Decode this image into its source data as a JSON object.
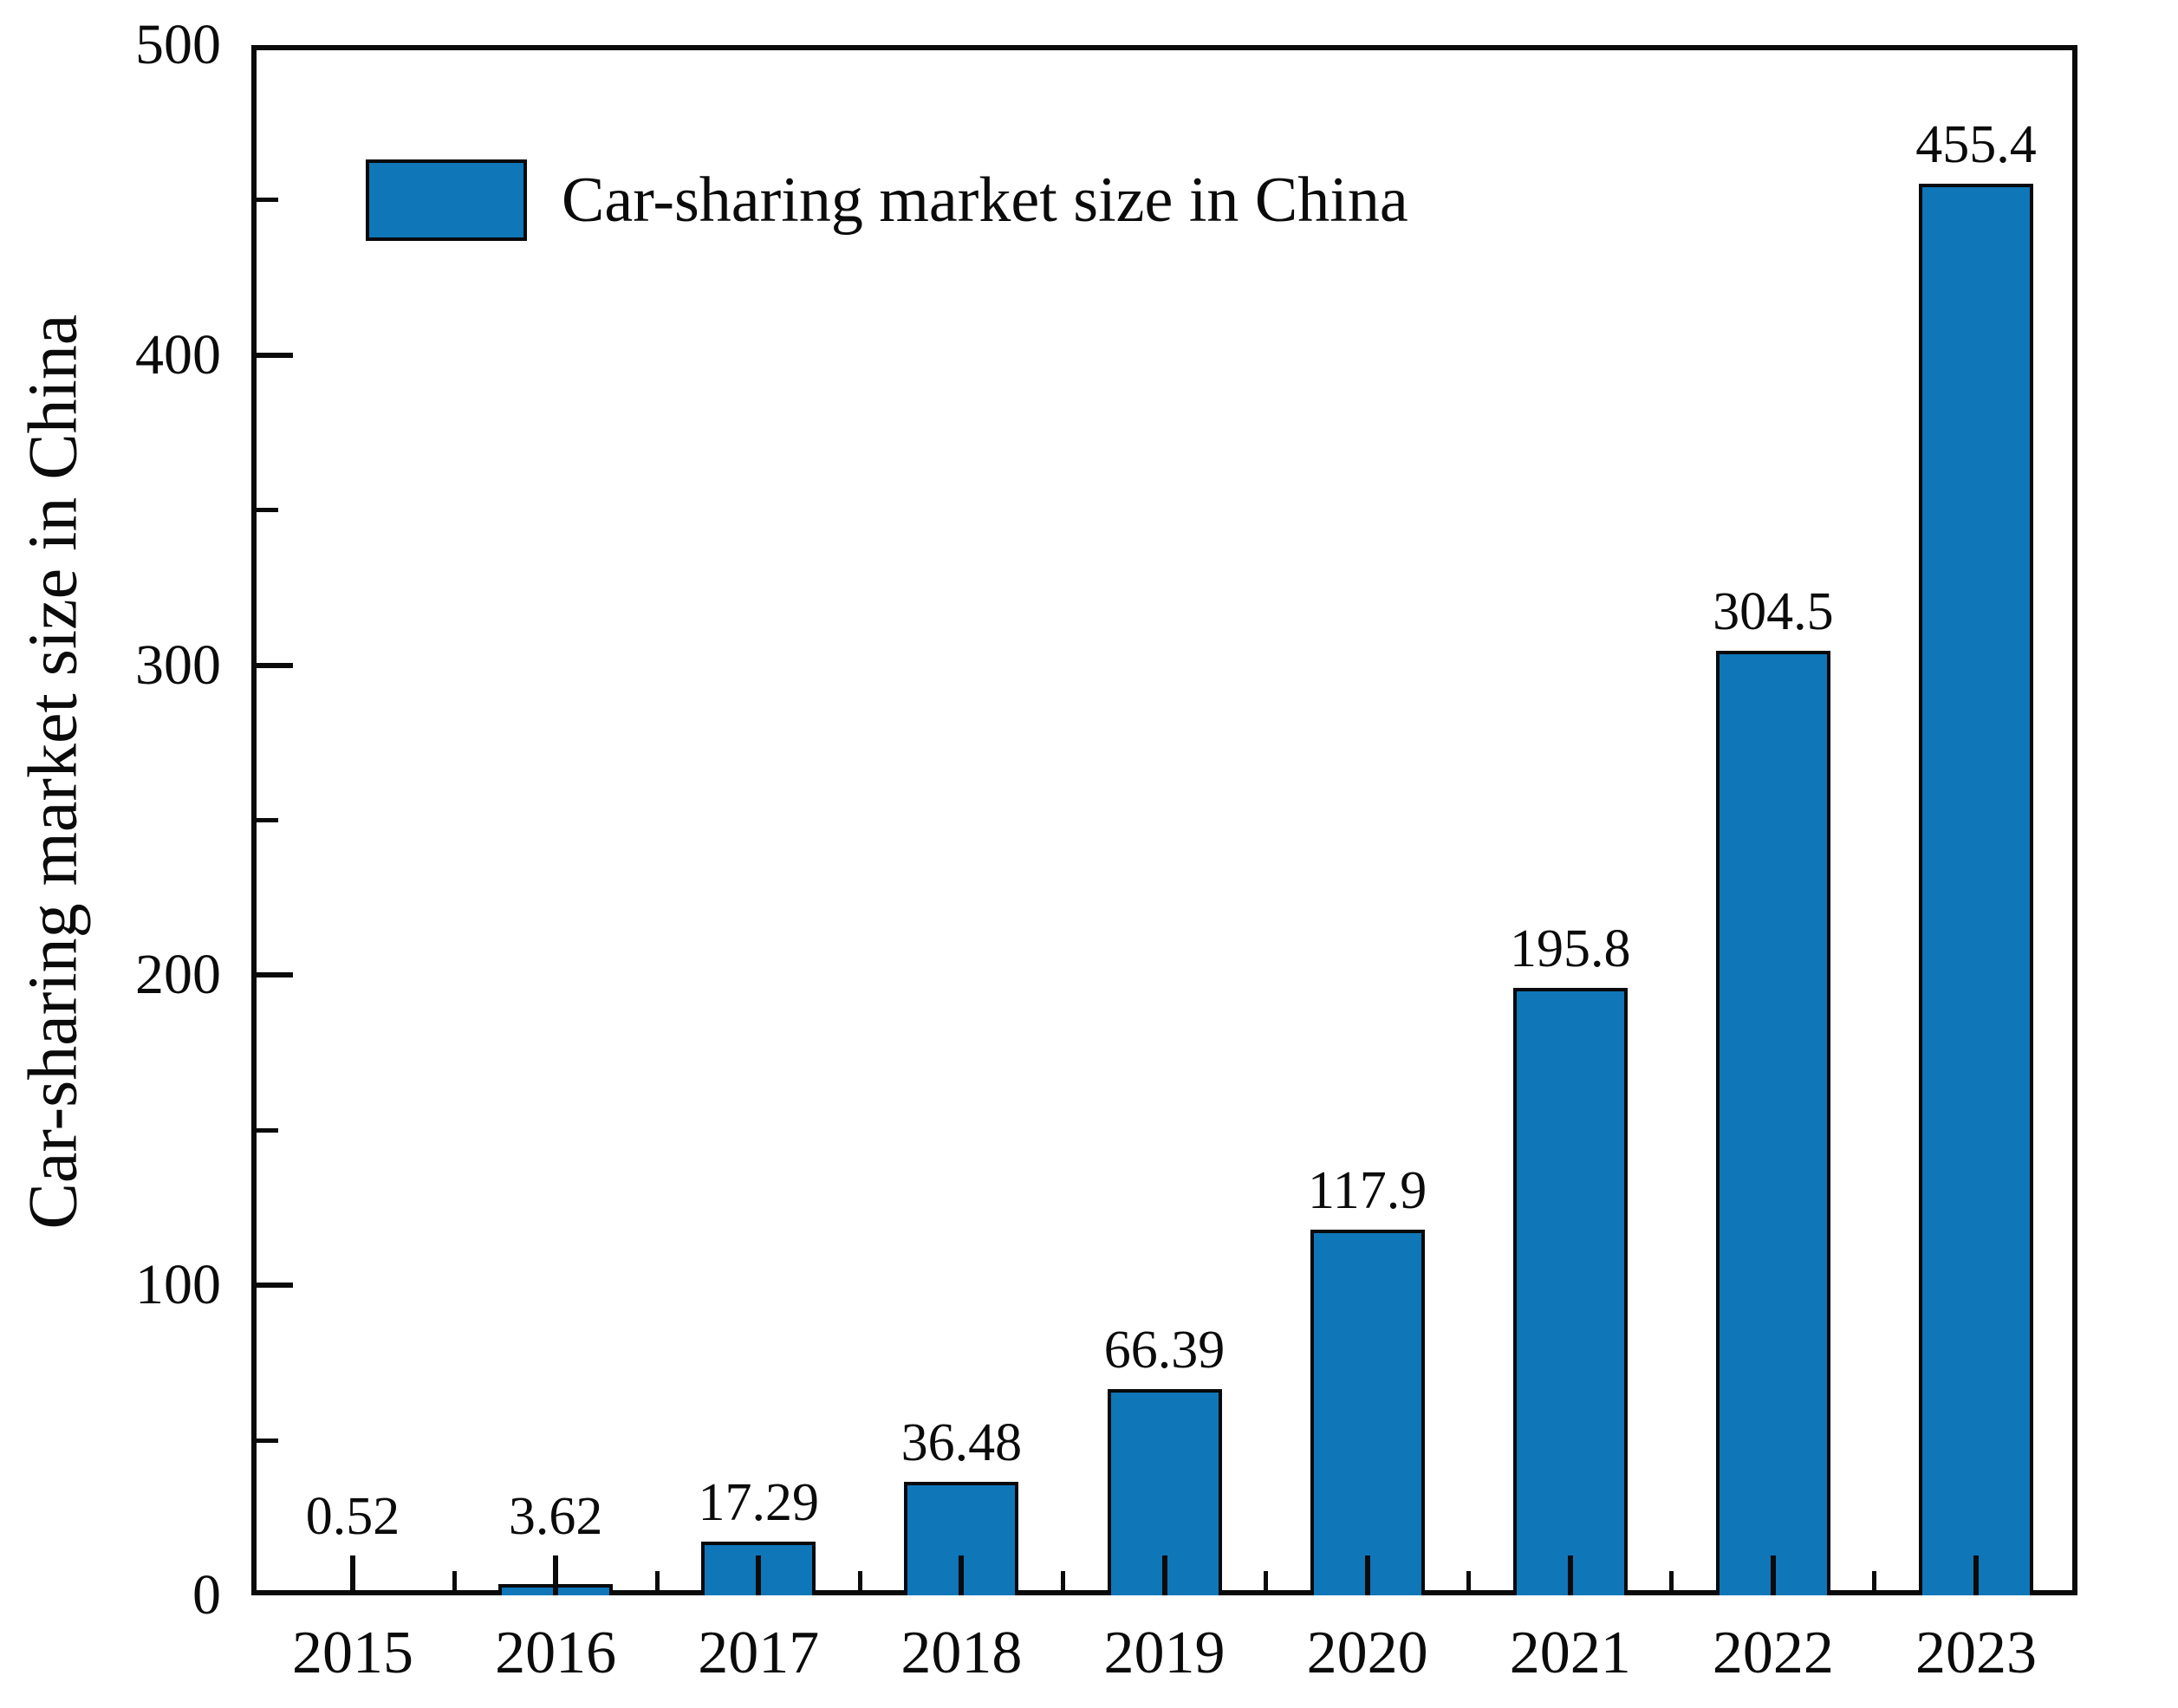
{
  "figure": {
    "ylabel": "Car-sharing market size in China",
    "legend": {
      "label": "Car-sharing market size in China"
    },
    "colors": {
      "bar_fill": "#0f76b8",
      "bar_edge": "#08090a",
      "axis": "#0b0b0b",
      "background": "#ffffff"
    }
  },
  "chart_data": {
    "type": "bar",
    "title": "",
    "xlabel": "",
    "ylabel": "Car-sharing market size in China",
    "categories": [
      "2015",
      "2016",
      "2017",
      "2018",
      "2019",
      "2020",
      "2021",
      "2022",
      "2023"
    ],
    "values": [
      0.52,
      3.62,
      17.29,
      36.48,
      66.39,
      117.9,
      195.8,
      304.5,
      455.4
    ],
    "value_labels": [
      "0.52",
      "3.62",
      "17.29",
      "36.48",
      "66.39",
      "117.9",
      "195.8",
      "304.5",
      "455.4"
    ],
    "series_name": "Car-sharing market size in China",
    "ylim": [
      0,
      500
    ],
    "y_major_ticks": [
      0,
      100,
      200,
      300,
      400,
      500
    ],
    "y_minor_ticks": [
      50,
      150,
      250,
      350,
      450
    ],
    "grid": false,
    "legend_position": "upper-left",
    "bar_color": "#0f76b8",
    "bar_edge_color": "#08090a",
    "frame": "full-box",
    "tick_direction": "in"
  }
}
